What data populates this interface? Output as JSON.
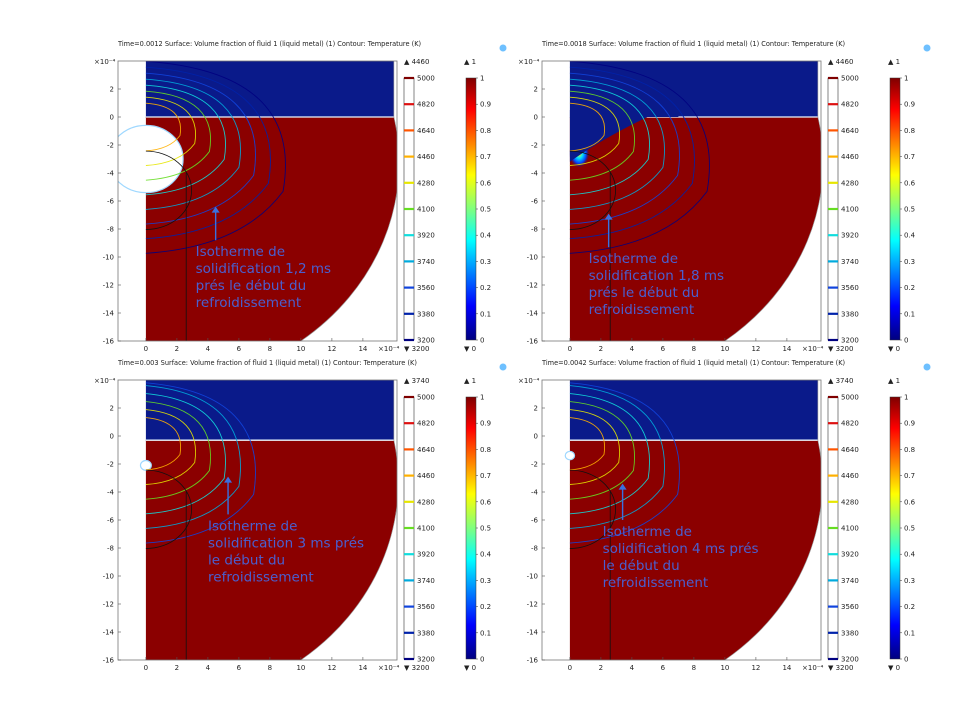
{
  "common": {
    "axis_exponent_label": "×10⁻⁴",
    "x_ticks": [
      0,
      2,
      4,
      6,
      8,
      10,
      12,
      14
    ],
    "y_ticks": [
      2,
      0,
      -2,
      -4,
      -6,
      -8,
      -10,
      -12,
      -14,
      -16
    ],
    "xlim": [
      -1.8,
      16.2
    ],
    "ylim": [
      -16,
      4
    ],
    "contour_legend_ticks": [
      "5000",
      "4820",
      "4640",
      "4460",
      "4280",
      "4100",
      "3920",
      "3740",
      "3560",
      "3380",
      "3200"
    ],
    "contour_colors": [
      "#7f0000",
      "#dd1111",
      "#ff5500",
      "#ffb000",
      "#e6e600",
      "#66dd22",
      "#11dddd",
      "#00aadd",
      "#1144dd",
      "#0022aa",
      "#000080"
    ],
    "surface_legend_ticks": [
      "1",
      "0.9",
      "0.8",
      "0.7",
      "0.6",
      "0.5",
      "0.4",
      "0.3",
      "0.2",
      "0.1",
      "0"
    ],
    "colors": {
      "metal": "#8b0000",
      "gas": "#0a1a8a",
      "annotation": "#4a5fd0",
      "arrow": "#3a70e0"
    }
  },
  "chart_data": [
    {
      "type": "heatmap",
      "title": "Time=0.0012   Surface: Volume fraction of fluid 1 (liquid metal) (1)  Contour: Temperature (K)",
      "time_s": 0.0012,
      "contour_max_label": "▲ 4460",
      "contour_min_label": "▼ 3200",
      "surface_max_label": "▲ 1",
      "surface_min_label": "▼ 0",
      "annotation_lines": [
        "Isotherme de",
        "solidification 1,2 ms",
        "prés le début du",
        "refroidissement"
      ],
      "arrow_tip_x": 4.5,
      "arrow_tip_y": -6.4,
      "arrow_tail_y": -8.8,
      "bubble_radius": 2.4,
      "bubble_center_y": -3.0,
      "interface_y": 0,
      "isotherm_radius": 2.6
    },
    {
      "type": "heatmap",
      "title": "Time=0.0018   Surface: Volume fraction of fluid 1 (liquid metal) (1)  Contour: Temperature (K)",
      "time_s": 0.0018,
      "contour_max_label": "▲ 4460",
      "contour_min_label": "▼ 3200",
      "surface_max_label": "▲ 1",
      "surface_min_label": "▼ 0",
      "annotation_lines": [
        "Isotherme de",
        "solidification 1,8 ms",
        "prés le début du",
        "refroidissement"
      ],
      "arrow_tip_x": 2.5,
      "arrow_tip_y": -6.9,
      "arrow_tail_y": -9.3,
      "bubble_radius": 0,
      "bubble_center_y": 0,
      "interface_y": 0,
      "isotherm_radius": 2.6
    },
    {
      "type": "heatmap",
      "title": "Time=0.003   Surface: Volume fraction of fluid 1 (liquid metal) (1)  Contour: Temperature (K)",
      "time_s": 0.003,
      "contour_max_label": "▲ 3740",
      "contour_min_label": "▼ 3200",
      "surface_max_label": "▲ 1",
      "surface_min_label": "▼ 0",
      "annotation_lines": [
        "Isotherme de",
        "solidification 3 ms prés",
        "le début du",
        "refroidissement"
      ],
      "arrow_tip_x": 5.3,
      "arrow_tip_y": -2.9,
      "arrow_tail_y": -5.6,
      "bubble_radius": 0.35,
      "bubble_center_y": -2.1,
      "interface_y": -0.3,
      "isotherm_radius": 2.6
    },
    {
      "type": "heatmap",
      "title": "Time=0.0042   Surface: Volume fraction of fluid 1 (liquid metal) (1)  Contour: Temperature (K)",
      "time_s": 0.0042,
      "contour_max_label": "▲ 3740",
      "contour_min_label": "▼ 3200",
      "surface_max_label": "▲ 1",
      "surface_min_label": "▼ 0",
      "annotation_lines": [
        "Isotherme de",
        "solidification 4 ms prés",
        "le début du",
        "refroidissement"
      ],
      "arrow_tip_x": 3.4,
      "arrow_tip_y": -3.4,
      "arrow_tail_y": -6.0,
      "bubble_radius": 0.3,
      "bubble_center_y": -1.4,
      "interface_y": -0.3,
      "isotherm_radius": 2.6
    }
  ]
}
